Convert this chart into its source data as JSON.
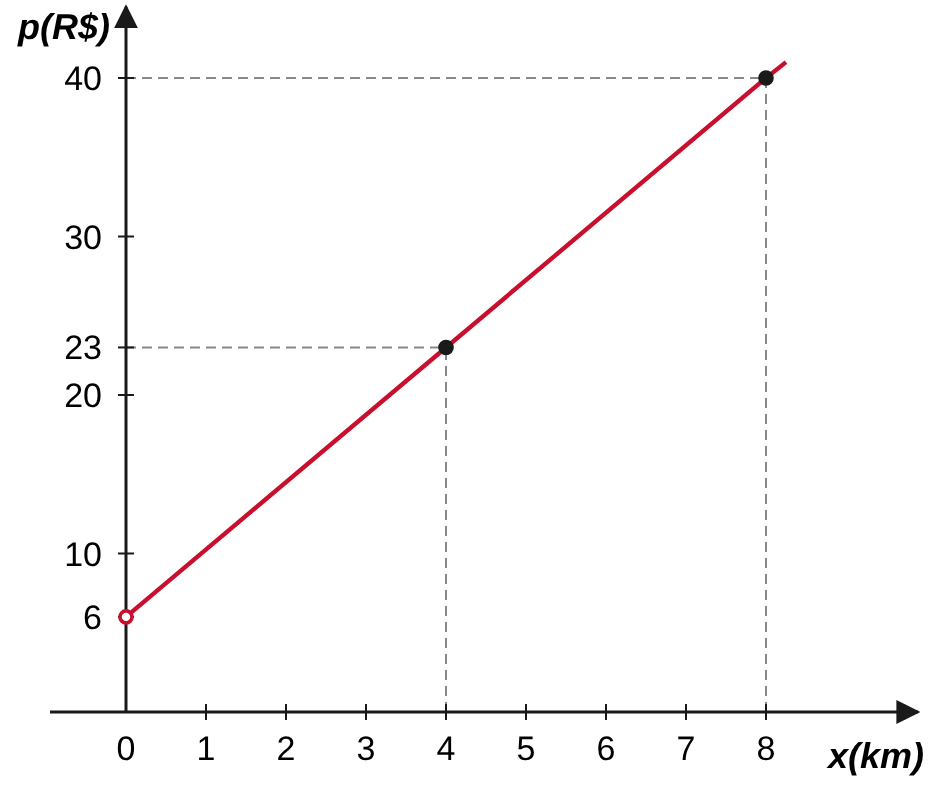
{
  "chart_data": {
    "type": "line",
    "xlabel": "x(km)",
    "ylabel": "p(R$)",
    "xlim": [
      0,
      9.9
    ],
    "ylim": [
      0,
      44.5
    ],
    "xticks": [
      0,
      1,
      2,
      3,
      4,
      5,
      6,
      7,
      8
    ],
    "ref_lines": [
      {
        "axis": "x",
        "value": 4,
        "color": "#888888",
        "line_style": "dashed"
      },
      {
        "axis": "x",
        "value": 8,
        "color": "#888888",
        "line_style": "dashed"
      },
      {
        "axis": "y",
        "value": 23,
        "color": "#888888",
        "line_style": "dashed"
      },
      {
        "axis": "y",
        "value": 40,
        "color": "#888888",
        "line_style": "dashed"
      }
    ],
    "yticks": [
      6,
      10,
      20,
      23,
      30,
      40
    ],
    "grid": false,
    "series": [
      {
        "color": "#c8102e",
        "x": [
          0,
          4,
          8,
          8.25
        ],
        "values": [
          6,
          23,
          40,
          41
        ]
      },
      {
        "type": "scatter",
        "color": "#1a1a1a",
        "x": [
          4,
          8
        ],
        "values": [
          23,
          40
        ]
      },
      {
        "type": "scatter",
        "color": "#c8102e",
        "x": [
          0
        ],
        "values": [
          6
        ]
      }
    ]
  }
}
